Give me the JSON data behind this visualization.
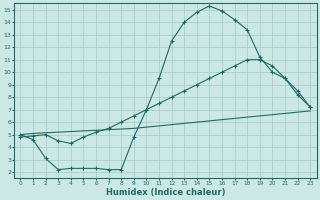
{
  "xlabel": "Humidex (Indice chaleur)",
  "bg_color": "#cce8e5",
  "line_color": "#1e6b65",
  "grid_color": "#aacfcc",
  "xlim": [
    -0.5,
    23.5
  ],
  "ylim": [
    1.5,
    15.5
  ],
  "xticks": [
    0,
    1,
    2,
    3,
    4,
    5,
    6,
    7,
    8,
    9,
    10,
    11,
    12,
    13,
    14,
    15,
    16,
    17,
    18,
    19,
    20,
    21,
    22,
    23
  ],
  "yticks": [
    2,
    3,
    4,
    5,
    6,
    7,
    8,
    9,
    10,
    11,
    12,
    13,
    14,
    15
  ],
  "line1_x": [
    0,
    1,
    2,
    3,
    4,
    5,
    6,
    7,
    8,
    9,
    10,
    11,
    12,
    13,
    14,
    15,
    16,
    17,
    18,
    19,
    20,
    21,
    22,
    23
  ],
  "line1_y": [
    5.0,
    4.6,
    3.1,
    2.2,
    2.3,
    2.3,
    2.3,
    2.2,
    2.2,
    4.8,
    7.0,
    9.5,
    12.5,
    14.0,
    14.8,
    15.3,
    14.9,
    14.2,
    13.4,
    11.2,
    10.0,
    9.5,
    8.5,
    7.2
  ],
  "line2_x": [
    0,
    1,
    2,
    3,
    4,
    5,
    6,
    7,
    8,
    9,
    10,
    11,
    12,
    13,
    14,
    15,
    16,
    17,
    18,
    19,
    20,
    21,
    22,
    23
  ],
  "line2_y": [
    5.0,
    5.1,
    5.15,
    5.2,
    5.25,
    5.3,
    5.35,
    5.4,
    5.45,
    5.5,
    5.6,
    5.7,
    5.8,
    5.9,
    6.0,
    6.1,
    6.2,
    6.3,
    6.4,
    6.5,
    6.6,
    6.7,
    6.8,
    6.9
  ],
  "line3_x": [
    0,
    1,
    2,
    3,
    4,
    5,
    6,
    7,
    8,
    9,
    10,
    11,
    12,
    13,
    14,
    15,
    16,
    17,
    18,
    19,
    20,
    21,
    22,
    23
  ],
  "line3_y": [
    4.8,
    4.9,
    5.0,
    4.5,
    4.3,
    4.8,
    5.2,
    5.5,
    6.0,
    6.5,
    7.0,
    7.5,
    8.0,
    8.5,
    9.0,
    9.5,
    10.0,
    10.5,
    11.0,
    11.0,
    10.5,
    9.5,
    8.2,
    7.2
  ]
}
